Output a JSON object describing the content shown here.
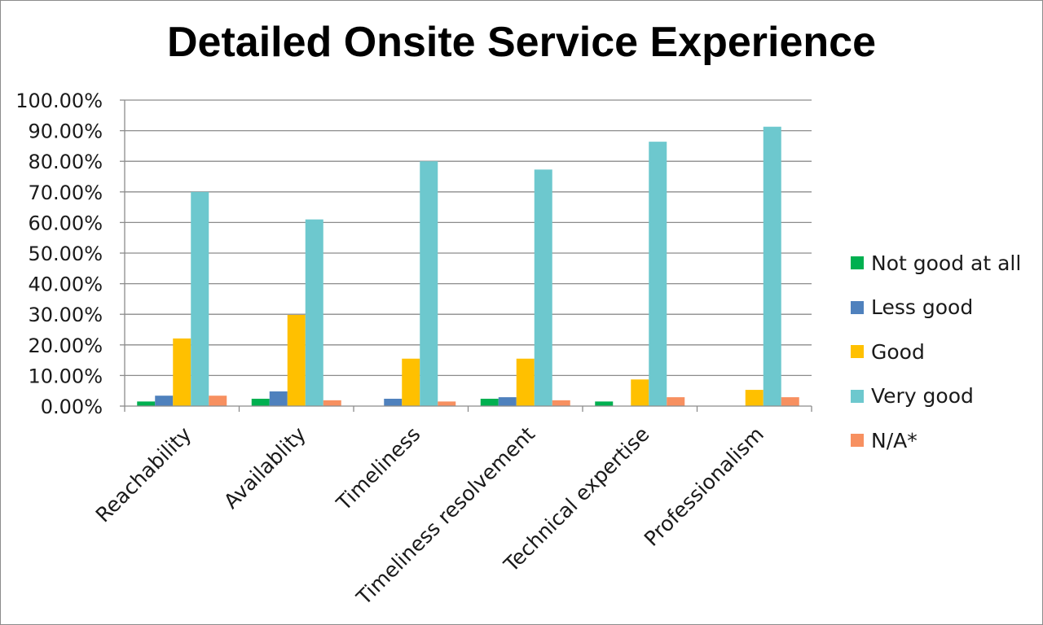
{
  "chart_data": {
    "type": "bar",
    "title": "Detailed Onsite Service Experience",
    "categories": [
      "Reachability",
      "Availablity",
      "Timeliness",
      "Timeliness resolvement",
      "Technical expertise",
      "Professionalism"
    ],
    "series": [
      {
        "name": "Not good at all",
        "color": "#00b050",
        "values": [
          1.5,
          2.4,
          0.0,
          2.4,
          1.5,
          0.0
        ]
      },
      {
        "name": "Less good",
        "color": "#4f81bd",
        "values": [
          3.4,
          4.8,
          2.4,
          2.9,
          0.0,
          0.0
        ]
      },
      {
        "name": "Good",
        "color": "#ffc000",
        "values": [
          22.1,
          29.8,
          15.5,
          15.5,
          8.7,
          5.3
        ]
      },
      {
        "name": "Very good",
        "color": "#6dc8ce",
        "values": [
          70.0,
          61.0,
          80.0,
          77.3,
          86.4,
          91.3
        ]
      },
      {
        "name": "N/A*",
        "color": "#f79060",
        "values": [
          3.4,
          1.9,
          1.5,
          1.9,
          2.9,
          2.9
        ]
      }
    ],
    "yticks": [
      "0.00%",
      "10.00%",
      "20.00%",
      "30.00%",
      "40.00%",
      "50.00%",
      "60.00%",
      "70.00%",
      "80.00%",
      "90.00%",
      "100.00%"
    ],
    "ylim": [
      0,
      100
    ],
    "grid": true,
    "legend_position": "right"
  }
}
